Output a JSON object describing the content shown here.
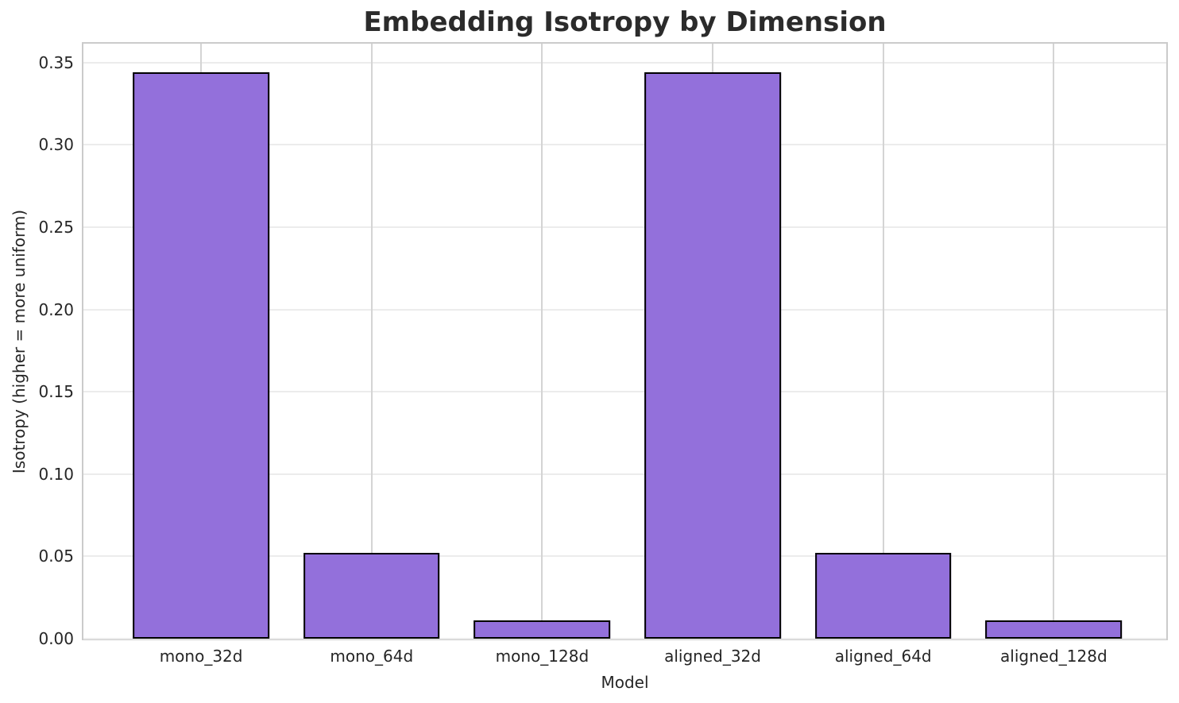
{
  "chart_data": {
    "type": "bar",
    "title": "Embedding Isotropy by Dimension",
    "xlabel": "Model",
    "ylabel": "Isotropy (higher = more uniform)",
    "categories": [
      "mono_32d",
      "mono_64d",
      "mono_128d",
      "aligned_32d",
      "aligned_64d",
      "aligned_128d"
    ],
    "values": [
      0.344,
      0.052,
      0.011,
      0.344,
      0.052,
      0.011
    ],
    "ytick_labels": [
      "0.00",
      "0.05",
      "0.10",
      "0.15",
      "0.20",
      "0.25",
      "0.30",
      "0.35"
    ],
    "ylim": [
      0,
      0.3615
    ],
    "grid": true,
    "legend_position": "none",
    "colors": {
      "bar_fill": "#9370DB",
      "bar_edge": "#000000",
      "h_grid": "#ececec",
      "v_grid": "#d4d4d4",
      "spine": "#cbcbcb",
      "text": "#262626",
      "title": "#2b2b2b",
      "background": "#ffffff"
    }
  }
}
